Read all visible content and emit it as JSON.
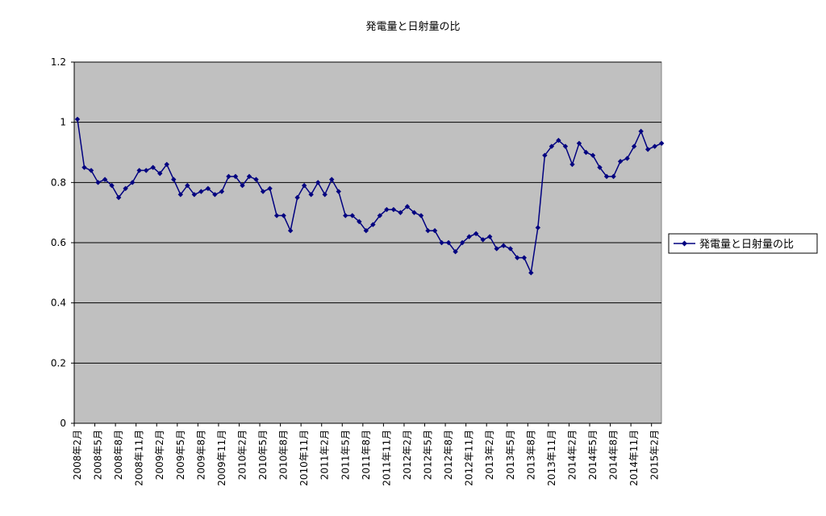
{
  "chart_data": {
    "type": "line",
    "title": "発電量と日射量の比",
    "xlabel": "",
    "ylabel": "",
    "ylim": [
      0,
      1.2
    ],
    "yticks": [
      "0",
      "0.2",
      "0.4",
      "0.6",
      "0.8",
      "1",
      "1.2"
    ],
    "grid": true,
    "legend_position": "right",
    "colors": {
      "plot_bg": "#c0c0c0",
      "series": "#000080",
      "grid": "#000000"
    },
    "x": [
      "2008年2月",
      "2008年3月",
      "2008年4月",
      "2008年5月",
      "2008年6月",
      "2008年7月",
      "2008年8月",
      "2008年9月",
      "2008年10月",
      "2008年11月",
      "2008年12月",
      "2009年1月",
      "2009年2月",
      "2009年3月",
      "2009年4月",
      "2009年5月",
      "2009年6月",
      "2009年7月",
      "2009年8月",
      "2009年9月",
      "2009年10月",
      "2009年11月",
      "2009年12月",
      "2010年1月",
      "2010年2月",
      "2010年3月",
      "2010年4月",
      "2010年5月",
      "2010年6月",
      "2010年7月",
      "2010年8月",
      "2010年9月",
      "2010年10月",
      "2010年11月",
      "2010年12月",
      "2011年1月",
      "2011年2月",
      "2011年3月",
      "2011年4月",
      "2011年5月",
      "2011年6月",
      "2011年7月",
      "2011年8月",
      "2011年9月",
      "2011年10月",
      "2011年11月",
      "2011年12月",
      "2012年1月",
      "2012年2月",
      "2012年3月",
      "2012年4月",
      "2012年5月",
      "2012年6月",
      "2012年7月",
      "2012年8月",
      "2012年9月",
      "2012年10月",
      "2012年11月",
      "2012年12月",
      "2013年1月",
      "2013年2月",
      "2013年3月",
      "2013年4月",
      "2013年5月",
      "2013年6月",
      "2013年7月",
      "2013年8月",
      "2013年9月",
      "2013年10月",
      "2013年11月",
      "2013年12月",
      "2014年1月",
      "2014年2月",
      "2014年3月",
      "2014年4月",
      "2014年5月",
      "2014年6月",
      "2014年7月",
      "2014年8月",
      "2014年9月",
      "2014年10月",
      "2014年11月",
      "2014年12月",
      "2015年1月",
      "2015年2月",
      "2015年3月"
    ],
    "x_tick_labels": [
      "2008年2月",
      "2008年5月",
      "2008年8月",
      "2008年11月",
      "2009年2月",
      "2009年5月",
      "2009年8月",
      "2009年11月",
      "2010年2月",
      "2010年5月",
      "2010年8月",
      "2010年11月",
      "2011年2月",
      "2011年5月",
      "2011年8月",
      "2011年11月",
      "2012年2月",
      "2012年5月",
      "2012年8月",
      "2012年11月",
      "2013年2月",
      "2013年5月",
      "2013年8月",
      "2013年11月",
      "2014年2月",
      "2014年5月",
      "2014年8月",
      "2014年11月",
      "2015年2月"
    ],
    "series": [
      {
        "name": "発電量と日射量の比",
        "values": [
          1.01,
          0.85,
          0.84,
          0.8,
          0.81,
          0.79,
          0.75,
          0.78,
          0.8,
          0.84,
          0.84,
          0.85,
          0.83,
          0.86,
          0.81,
          0.76,
          0.79,
          0.76,
          0.77,
          0.78,
          0.76,
          0.77,
          0.82,
          0.82,
          0.79,
          0.82,
          0.81,
          0.77,
          0.78,
          0.69,
          0.69,
          0.64,
          0.75,
          0.79,
          0.76,
          0.8,
          0.76,
          0.81,
          0.77,
          0.69,
          0.69,
          0.67,
          0.64,
          0.66,
          0.69,
          0.71,
          0.71,
          0.7,
          0.72,
          0.7,
          0.69,
          0.64,
          0.64,
          0.6,
          0.6,
          0.57,
          0.6,
          0.62,
          0.63,
          0.61,
          0.62,
          0.58,
          0.59,
          0.58,
          0.55,
          0.55,
          0.5,
          0.65,
          0.89,
          0.92,
          0.94,
          0.92,
          0.86,
          0.93,
          0.9,
          0.89,
          0.85,
          0.82,
          0.82,
          0.87,
          0.88,
          0.92,
          0.97,
          0.91,
          0.92,
          0.93
        ]
      }
    ]
  }
}
